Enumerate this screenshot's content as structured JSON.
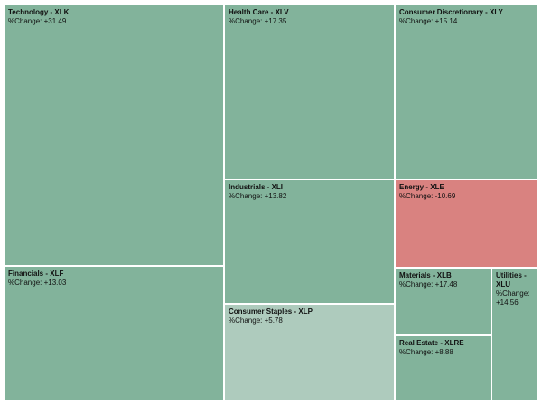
{
  "chart_data": {
    "type": "treemap",
    "change_label_prefix": "%Change: ",
    "colors": {
      "positive_strong": "#82b39b",
      "positive_weak": "#aecbbd",
      "negative": "#d98280",
      "border": "#ffffff"
    },
    "items": [
      {
        "label": "Technology - XLK",
        "change": "+31.49",
        "value": 31.49
      },
      {
        "label": "Financials - XLF",
        "change": "+13.03",
        "value": 13.03
      },
      {
        "label": "Health Care - XLV",
        "change": "+17.35",
        "value": 17.35
      },
      {
        "label": "Industrials - XLI",
        "change": "+13.82",
        "value": 13.82
      },
      {
        "label": "Consumer Staples - XLP",
        "change": "+5.78",
        "value": 5.78
      },
      {
        "label": "Consumer Discretionary - XLY",
        "change": "+15.14",
        "value": 15.14
      },
      {
        "label": "Energy - XLE",
        "change": "-10.69",
        "value": -10.69
      },
      {
        "label": "Materials - XLB",
        "change": "+17.48",
        "value": 17.48
      },
      {
        "label": "Real Estate - XLRE",
        "change": "+8.88",
        "value": 8.88
      },
      {
        "label": "Utilities - XLU",
        "change": "+14.56",
        "value": 14.56
      }
    ]
  }
}
